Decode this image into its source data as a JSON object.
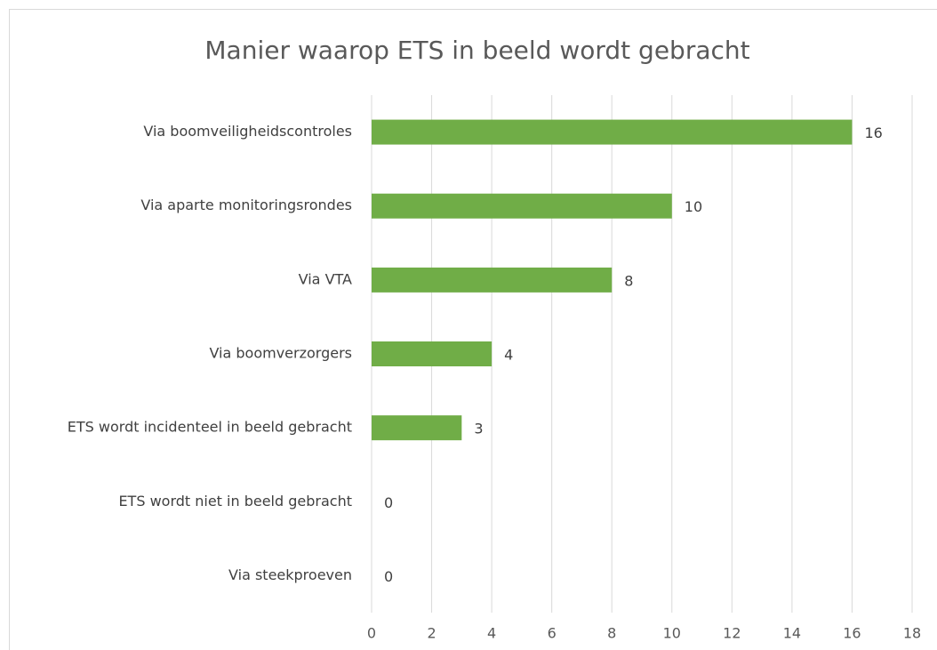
{
  "chart_data": {
    "type": "bar",
    "orientation": "horizontal",
    "title": "Manier waarop ETS in beeld wordt gebracht",
    "categories": [
      "Via boomveiligheidscontroles",
      "Via aparte monitoringsrondes",
      "Via VTA",
      "Via boomverzorgers",
      "ETS wordt incidenteel in beeld gebracht",
      "ETS wordt niet in beeld gebracht",
      "Via steekproeven"
    ],
    "values": [
      16,
      10,
      8,
      4,
      3,
      0,
      0
    ],
    "color": "#70ad47",
    "xlim": [
      0,
      18
    ],
    "xticks": [
      0,
      2,
      4,
      6,
      8,
      10,
      12,
      14,
      16,
      18
    ],
    "grid": true
  }
}
